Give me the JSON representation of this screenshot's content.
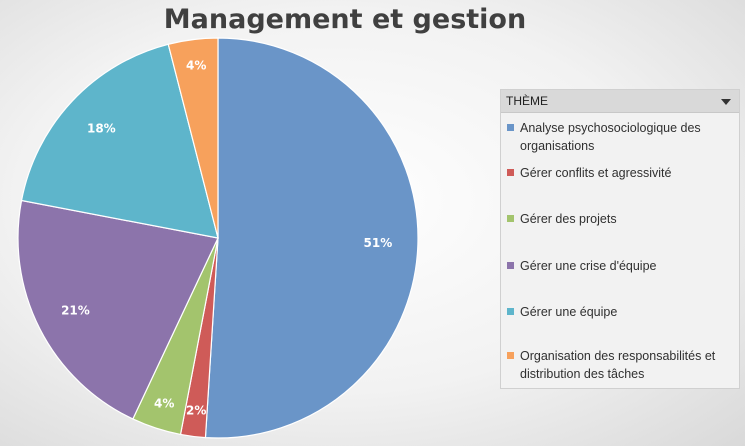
{
  "chart_data": {
    "type": "pie",
    "title": "Management et gestion",
    "legend_title": "THÈME",
    "legend_position": "right",
    "slices": [
      {
        "label": "Analyse psychosociologique des organisations",
        "value": 51,
        "display": "51%",
        "color": "#6a95c8"
      },
      {
        "label": "Gérer conflits et agressivité",
        "value": 2,
        "display": "2%",
        "color": "#cf5b58"
      },
      {
        "label": "Gérer des projets",
        "value": 4,
        "display": "4%",
        "color": "#a3c46d"
      },
      {
        "label": "Gérer une crise d'équipe",
        "value": 21,
        "display": "21%",
        "color": "#8c74ab"
      },
      {
        "label": "Gérer une équipe",
        "value": 18,
        "display": "18%",
        "color": "#5eb5cb"
      },
      {
        "label": "Organisation des responsabilités et distribution des tâches",
        "value": 4,
        "display": "4%",
        "color": "#f7a15c"
      }
    ]
  }
}
